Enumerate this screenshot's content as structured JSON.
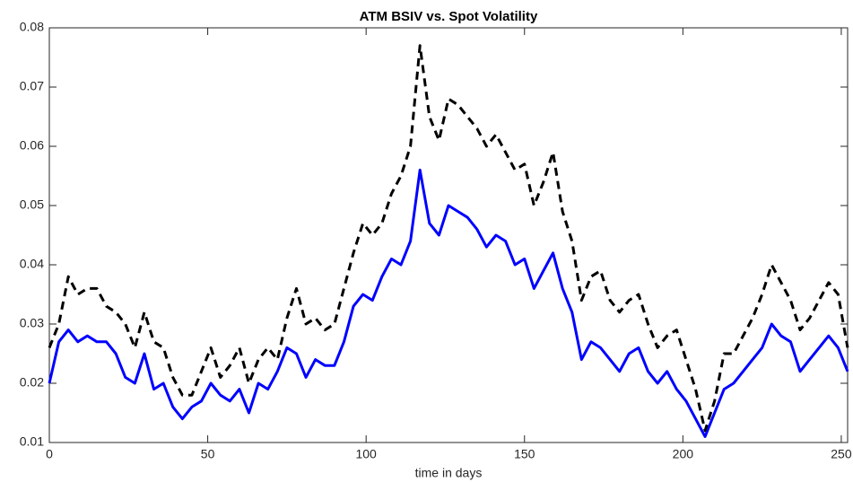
{
  "chart_data": {
    "type": "line",
    "title": "ATM BSIV vs. Spot Volatility",
    "x_label": "time in days",
    "x": [
      0,
      3,
      6,
      9,
      12,
      15,
      18,
      21,
      24,
      27,
      30,
      33,
      36,
      39,
      42,
      45,
      48,
      51,
      54,
      57,
      60,
      63,
      66,
      69,
      72,
      75,
      78,
      81,
      84,
      87,
      90,
      93,
      96,
      99,
      102,
      105,
      108,
      111,
      114,
      117,
      120,
      123,
      126,
      129,
      132,
      135,
      138,
      141,
      144,
      147,
      150,
      153,
      156,
      159,
      162,
      165,
      168,
      171,
      174,
      177,
      180,
      183,
      186,
      189,
      192,
      195,
      198,
      201,
      204,
      207,
      210,
      213,
      216,
      219,
      222,
      225,
      228,
      231,
      234,
      237,
      240,
      243,
      246,
      249,
      252
    ],
    "series": [
      {
        "color": "#0000ff",
        "line_style": "solid",
        "values": [
          0.02,
          0.027,
          0.029,
          0.027,
          0.028,
          0.027,
          0.027,
          0.025,
          0.021,
          0.02,
          0.025,
          0.019,
          0.02,
          0.016,
          0.014,
          0.016,
          0.017,
          0.02,
          0.018,
          0.017,
          0.019,
          0.015,
          0.02,
          0.019,
          0.022,
          0.026,
          0.025,
          0.021,
          0.024,
          0.023,
          0.023,
          0.027,
          0.033,
          0.035,
          0.034,
          0.038,
          0.041,
          0.04,
          0.044,
          0.056,
          0.047,
          0.045,
          0.05,
          0.049,
          0.048,
          0.046,
          0.043,
          0.045,
          0.044,
          0.04,
          0.041,
          0.036,
          0.039,
          0.042,
          0.036,
          0.032,
          0.024,
          0.027,
          0.026,
          0.024,
          0.022,
          0.025,
          0.026,
          0.022,
          0.02,
          0.022,
          0.019,
          0.017,
          0.014,
          0.011,
          0.015,
          0.019,
          0.02,
          0.022,
          0.024,
          0.026,
          0.03,
          0.028,
          0.027,
          0.022,
          0.024,
          0.026,
          0.028,
          0.026,
          0.022
        ]
      },
      {
        "color": "#000000",
        "line_style": "dashed",
        "values": [
          0.026,
          0.03,
          0.038,
          0.035,
          0.036,
          0.036,
          0.033,
          0.032,
          0.03,
          0.026,
          0.032,
          0.027,
          0.026,
          0.021,
          0.018,
          0.018,
          0.022,
          0.026,
          0.021,
          0.023,
          0.026,
          0.02,
          0.024,
          0.026,
          0.024,
          0.031,
          0.036,
          0.03,
          0.031,
          0.029,
          0.03,
          0.036,
          0.042,
          0.047,
          0.045,
          0.047,
          0.052,
          0.055,
          0.06,
          0.077,
          0.065,
          0.061,
          0.068,
          0.067,
          0.065,
          0.063,
          0.06,
          0.062,
          0.059,
          0.056,
          0.057,
          0.05,
          0.054,
          0.059,
          0.049,
          0.044,
          0.034,
          0.038,
          0.039,
          0.034,
          0.032,
          0.034,
          0.035,
          0.03,
          0.026,
          0.028,
          0.029,
          0.024,
          0.019,
          0.012,
          0.017,
          0.025,
          0.025,
          0.028,
          0.031,
          0.035,
          0.04,
          0.037,
          0.034,
          0.029,
          0.031,
          0.034,
          0.037,
          0.035,
          0.026
        ]
      }
    ],
    "xlim": [
      0,
      252
    ],
    "xticks": [
      0,
      50,
      100,
      150,
      200,
      250
    ],
    "ylim": [
      0.01,
      0.08
    ],
    "yticks": [
      0.01,
      0.02,
      0.03,
      0.04,
      0.05,
      0.06,
      0.07,
      0.08
    ],
    "grid": false
  }
}
